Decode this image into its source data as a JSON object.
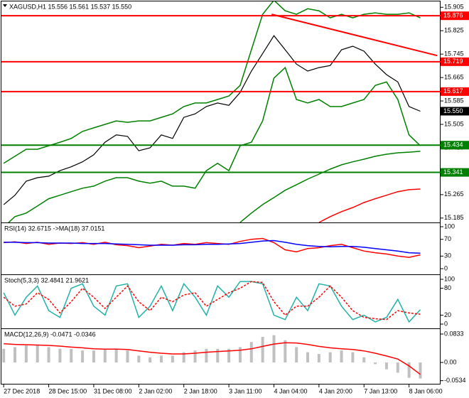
{
  "chart_data": [
    {
      "type": "line",
      "title": "XAGUSD,H1  15.556 15.561 15.537 15.550",
      "xlim": [
        -0.2,
        38.8
      ],
      "ylim": [
        15.17,
        15.925
      ],
      "yticks": [
        15.905,
        15.825,
        15.745,
        15.665,
        15.585,
        15.505,
        15.425,
        15.345,
        15.265,
        15.185
      ],
      "series": [
        {
          "name": "Upper band",
          "color": "#008000",
          "values": [
            15.372,
            15.396,
            15.42,
            15.42,
            15.432,
            15.444,
            15.457,
            15.481,
            15.493,
            15.505,
            15.517,
            15.512,
            15.517,
            15.517,
            15.529,
            15.541,
            15.566,
            15.578,
            15.578,
            15.59,
            15.602,
            15.638,
            15.76,
            15.881,
            15.929,
            15.893,
            15.881,
            15.9,
            15.893,
            15.869,
            15.881,
            15.869,
            15.881,
            15.886,
            15.881,
            15.881,
            15.886,
            15.869
          ]
        },
        {
          "name": "Lower band",
          "color": "#008000",
          "values": [
            15.154,
            15.19,
            15.202,
            15.226,
            15.251,
            15.263,
            15.275,
            15.287,
            15.294,
            15.311,
            15.323,
            15.323,
            15.311,
            15.304,
            15.311,
            15.294,
            15.294,
            15.287,
            15.347,
            15.372,
            15.347,
            15.432,
            15.444,
            15.517,
            15.663,
            15.699,
            15.59,
            15.578,
            15.59,
            15.566,
            15.566,
            15.578,
            15.59,
            15.638,
            15.65,
            15.59,
            15.469,
            15.432
          ]
        },
        {
          "name": "Slow MA",
          "color": "#008000",
          "values": [
            null,
            null,
            null,
            null,
            null,
            null,
            null,
            null,
            null,
            null,
            null,
            null,
            null,
            null,
            null,
            null,
            null,
            null,
            null,
            null,
            null,
            15.17,
            15.202,
            15.231,
            15.255,
            15.28,
            15.299,
            15.318,
            15.335,
            15.352,
            15.367,
            15.377,
            15.386,
            15.396,
            15.403,
            15.408,
            15.41,
            15.413
          ]
        },
        {
          "name": "Long MA",
          "color": "#ff0000",
          "values": [
            null,
            null,
            null,
            null,
            null,
            null,
            null,
            null,
            null,
            null,
            null,
            null,
            null,
            null,
            null,
            null,
            null,
            null,
            null,
            null,
            null,
            null,
            null,
            null,
            null,
            null,
            null,
            null,
            15.17,
            15.19,
            15.207,
            15.221,
            15.238,
            15.251,
            15.263,
            15.275,
            15.282,
            15.284
          ]
        },
        {
          "name": "Close",
          "color": "#000000",
          "values": [
            15.231,
            15.263,
            15.311,
            15.323,
            15.328,
            15.347,
            15.36,
            15.377,
            15.401,
            15.444,
            15.469,
            15.464,
            15.415,
            15.425,
            15.469,
            15.457,
            15.529,
            15.541,
            15.566,
            15.578,
            15.57,
            15.614,
            15.687,
            15.747,
            15.808,
            15.76,
            15.711,
            15.687,
            15.699,
            15.706,
            15.76,
            15.772,
            15.755,
            15.711,
            15.675,
            15.65,
            15.566,
            15.55
          ]
        }
      ],
      "trendline": {
        "color": "#ff0000",
        "x": [
          23.8,
          38.5
        ],
        "y": [
          15.881,
          15.74
        ]
      },
      "levels": [
        {
          "value": 15.876,
          "color": "#ff0000"
        },
        {
          "value": 15.719,
          "color": "#ff0000"
        },
        {
          "value": 15.617,
          "color": "#ff0000"
        },
        {
          "value": 15.434,
          "color": "#008000"
        },
        {
          "value": 15.341,
          "color": "#008000"
        }
      ],
      "last_price": {
        "value": 15.55,
        "label": "15.550",
        "color": "#000000"
      }
    },
    {
      "type": "line",
      "title": "RSI(14) 32.6715  ->MA(18) 37.0151",
      "xlim": [
        -0.2,
        38.8
      ],
      "ylim": [
        -13.5,
        108.5
      ],
      "yticks": [
        100,
        70,
        30,
        0
      ],
      "series": [
        {
          "name": "RSI",
          "color": "#ff0000",
          "values": [
            62,
            64,
            60,
            63,
            58,
            61,
            60,
            62,
            58,
            63,
            57,
            55,
            50,
            54,
            58,
            56,
            60,
            58,
            62,
            60,
            58,
            65,
            70,
            72,
            62,
            45,
            40,
            48,
            50,
            55,
            58,
            50,
            42,
            38,
            35,
            30,
            27,
            33
          ]
        },
        {
          "name": "MA",
          "color": "#0000ff",
          "values": [
            63,
            63,
            62,
            62,
            61,
            61,
            61,
            60,
            60,
            60,
            59,
            58,
            57,
            56,
            56,
            56,
            57,
            57,
            58,
            58,
            59,
            60,
            63,
            66,
            67,
            63,
            58,
            55,
            53,
            52,
            53,
            53,
            51,
            48,
            45,
            42,
            38,
            37
          ]
        }
      ]
    },
    {
      "type": "line",
      "title": "Stoch(5,3,3) 32.4841 21.9621",
      "xlim": [
        -0.2,
        38.8
      ],
      "ylim": [
        -9.5,
        109.5
      ],
      "yticks": [
        100,
        80,
        20,
        0
      ],
      "series": [
        {
          "name": "Main",
          "color": "#20b2aa",
          "values": [
            70,
            20,
            60,
            85,
            30,
            15,
            80,
            90,
            40,
            20,
            85,
            90,
            15,
            40,
            85,
            30,
            90,
            60,
            20,
            85,
            60,
            95,
            95,
            90,
            20,
            10,
            60,
            30,
            90,
            85,
            40,
            10,
            20,
            5,
            15,
            55,
            5,
            32
          ]
        },
        {
          "name": "Signal",
          "color": "#ff0000",
          "dash": true,
          "values": [
            60,
            40,
            45,
            70,
            55,
            25,
            50,
            80,
            60,
            35,
            60,
            85,
            50,
            30,
            60,
            50,
            65,
            70,
            40,
            55,
            70,
            80,
            95,
            93,
            50,
            20,
            40,
            40,
            60,
            85,
            60,
            30,
            15,
            12,
            10,
            30,
            25,
            22
          ]
        }
      ]
    },
    {
      "type": "bar",
      "title": "MACD(12,26,9) -0.0471 -0.0346",
      "xlim": [
        -0.2,
        38.8
      ],
      "ylim": [
        -0.0625,
        0.0979
      ],
      "yticks": [
        0.0833,
        {
          "value": 0,
          "label": "0.00"
        },
        -0.0534
      ],
      "color": "#c0c0c0",
      "values": [
        0.04,
        0.045,
        0.05,
        0.05,
        0.045,
        0.04,
        0.04,
        0.035,
        0.035,
        0.04,
        0.04,
        0.035,
        0.02,
        0.015,
        0.02,
        0.02,
        0.03,
        0.035,
        0.04,
        0.04,
        0.04,
        0.045,
        0.06,
        0.075,
        0.08,
        0.065,
        0.045,
        0.03,
        0.025,
        0.03,
        0.035,
        0.03,
        0.015,
        -0.005,
        -0.02,
        -0.03,
        -0.045,
        -0.047
      ],
      "series": [
        {
          "name": "Signal",
          "color": "#ff0000",
          "values": [
            0.055,
            0.053,
            0.052,
            0.051,
            0.05,
            0.048,
            0.045,
            0.043,
            0.04,
            0.039,
            0.039,
            0.038,
            0.034,
            0.03,
            0.027,
            0.025,
            0.025,
            0.027,
            0.03,
            0.032,
            0.034,
            0.036,
            0.04,
            0.047,
            0.054,
            0.058,
            0.057,
            0.053,
            0.047,
            0.043,
            0.04,
            0.038,
            0.034,
            0.027,
            0.019,
            0.01,
            -0.01,
            -0.035
          ]
        }
      ],
      "xticks": [
        {
          "value": 0,
          "label": "27 Dec 2018"
        },
        {
          "value": 4,
          "label": "28 Dec 15:00"
        },
        {
          "value": 8,
          "label": "31 Dec 08:00"
        },
        {
          "value": 12,
          "label": "2 Jan 02:00"
        },
        {
          "value": 16,
          "label": "2 Jan 18:00"
        },
        {
          "value": 20,
          "label": "3 Jan 11:00"
        },
        {
          "value": 24,
          "label": "4 Jan 04:00"
        },
        {
          "value": 28,
          "label": "4 Jan 20:00"
        },
        {
          "value": 32,
          "label": "7 Jan 13:00"
        },
        {
          "value": 36,
          "label": "8 Jan 06:00"
        }
      ]
    }
  ]
}
